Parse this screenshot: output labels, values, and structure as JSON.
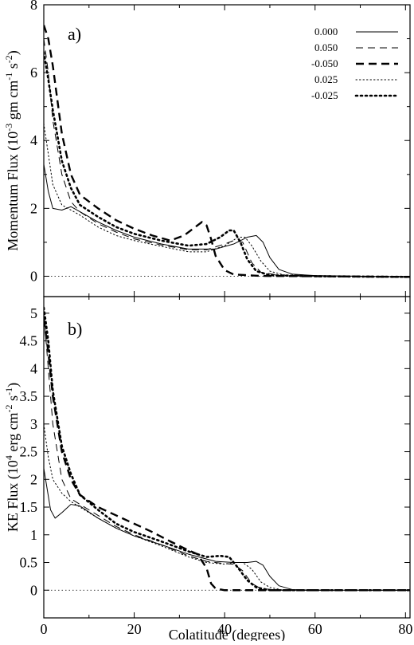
{
  "chart_data": [
    {
      "type": "line",
      "panel_label": "a)",
      "ylabel": "Momentum Flux (10",
      "ylabel_exp": "-3",
      "ylabel_units": " gm cm",
      "ylabel_units_exp1": "-1",
      "ylabel_units_mid": " s",
      "ylabel_units_exp2": "-2",
      "ylabel_close": ")",
      "xlim": [
        0,
        81
      ],
      "ylim": [
        -0.6,
        8
      ],
      "yticks": [
        0,
        2,
        4,
        6,
        8
      ],
      "xticks": [
        0,
        20,
        40,
        60,
        80
      ],
      "legend_position": "top-right",
      "zero_line": true,
      "series": [
        {
          "name": "0.000",
          "style": "solid-thin",
          "points": [
            [
              0,
              3.3
            ],
            [
              1,
              2.5
            ],
            [
              2,
              2.0
            ],
            [
              4,
              1.95
            ],
            [
              6,
              2.05
            ],
            [
              8,
              1.9
            ],
            [
              12,
              1.6
            ],
            [
              16,
              1.35
            ],
            [
              20,
              1.15
            ],
            [
              26,
              0.95
            ],
            [
              32,
              0.8
            ],
            [
              38,
              0.8
            ],
            [
              42,
              0.95
            ],
            [
              45,
              1.15
            ],
            [
              47,
              1.2
            ],
            [
              48.5,
              1.0
            ],
            [
              50,
              0.55
            ],
            [
              52,
              0.2
            ],
            [
              55,
              0.06
            ],
            [
              60,
              0.02
            ],
            [
              70,
              0.0
            ],
            [
              81,
              -0.02
            ]
          ]
        },
        {
          "name": "0.050",
          "style": "dash-thin",
          "points": [
            [
              0,
              7.0
            ],
            [
              1,
              6.0
            ],
            [
              2,
              4.6
            ],
            [
              4,
              3.0
            ],
            [
              6,
              2.2
            ],
            [
              8,
              1.9
            ],
            [
              12,
              1.55
            ],
            [
              16,
              1.3
            ],
            [
              20,
              1.1
            ],
            [
              26,
              0.92
            ],
            [
              32,
              0.78
            ],
            [
              36,
              0.78
            ],
            [
              40,
              0.95
            ],
            [
              42,
              1.05
            ],
            [
              44,
              1.0
            ],
            [
              46,
              0.4
            ],
            [
              48,
              0.12
            ],
            [
              52,
              0.03
            ],
            [
              60,
              0.01
            ],
            [
              70,
              0.0
            ],
            [
              81,
              -0.02
            ]
          ]
        },
        {
          "name": "-0.050",
          "style": "dash-thick",
          "points": [
            [
              0,
              7.4
            ],
            [
              1,
              7.0
            ],
            [
              2,
              6.2
            ],
            [
              4,
              4.2
            ],
            [
              6,
              3.0
            ],
            [
              8,
              2.4
            ],
            [
              12,
              2.0
            ],
            [
              16,
              1.65
            ],
            [
              20,
              1.4
            ],
            [
              24,
              1.2
            ],
            [
              28,
              1.05
            ],
            [
              31,
              1.2
            ],
            [
              33,
              1.4
            ],
            [
              35,
              1.6
            ],
            [
              36,
              1.5
            ],
            [
              37,
              1.1
            ],
            [
              38,
              0.6
            ],
            [
              40,
              0.18
            ],
            [
              42,
              0.05
            ],
            [
              48,
              0.01
            ],
            [
              60,
              0.0
            ],
            [
              81,
              -0.02
            ]
          ]
        },
        {
          "name": "0.025",
          "style": "dot-thin",
          "points": [
            [
              0,
              4.5
            ],
            [
              1,
              3.6
            ],
            [
              2,
              2.7
            ],
            [
              4,
              2.1
            ],
            [
              6,
              1.95
            ],
            [
              8,
              1.8
            ],
            [
              12,
              1.45
            ],
            [
              16,
              1.2
            ],
            [
              20,
              1.05
            ],
            [
              26,
              0.88
            ],
            [
              32,
              0.72
            ],
            [
              36,
              0.72
            ],
            [
              40,
              0.9
            ],
            [
              43,
              1.15
            ],
            [
              44.5,
              1.15
            ],
            [
              46,
              0.9
            ],
            [
              48,
              0.45
            ],
            [
              50,
              0.15
            ],
            [
              53,
              0.04
            ],
            [
              60,
              0.01
            ],
            [
              70,
              0.0
            ],
            [
              81,
              -0.02
            ]
          ]
        },
        {
          "name": "-0.025",
          "style": "dot-thick",
          "points": [
            [
              0,
              6.6
            ],
            [
              1,
              5.8
            ],
            [
              2,
              4.9
            ],
            [
              4,
              3.4
            ],
            [
              6,
              2.6
            ],
            [
              8,
              2.1
            ],
            [
              12,
              1.75
            ],
            [
              16,
              1.45
            ],
            [
              20,
              1.25
            ],
            [
              26,
              1.05
            ],
            [
              32,
              0.9
            ],
            [
              36,
              0.95
            ],
            [
              39,
              1.15
            ],
            [
              41,
              1.35
            ],
            [
              42,
              1.35
            ],
            [
              43.5,
              1.0
            ],
            [
              45,
              0.5
            ],
            [
              47,
              0.15
            ],
            [
              50,
              0.03
            ],
            [
              60,
              0.0
            ],
            [
              81,
              -0.02
            ]
          ]
        }
      ]
    },
    {
      "type": "line",
      "panel_label": "b)",
      "ylabel": "KE Flux (10",
      "ylabel_exp": "4",
      "ylabel_units": " erg cm",
      "ylabel_units_exp1": "-2",
      "ylabel_units_mid": " s",
      "ylabel_units_exp2": "-1",
      "ylabel_close": ")",
      "xlabel": "Colatitude (degrees)",
      "xlim": [
        0,
        81
      ],
      "ylim": [
        -0.5,
        5.3
      ],
      "yticks": [
        0,
        0.5,
        1,
        1.5,
        2,
        2.5,
        3,
        3.5,
        4,
        4.5,
        5
      ],
      "xticks": [
        0,
        20,
        40,
        60,
        80
      ],
      "zero_line": true,
      "series": [
        {
          "name": "0.000",
          "style": "solid-thin",
          "points": [
            [
              0,
              2.2
            ],
            [
              0.8,
              1.8
            ],
            [
              1.5,
              1.45
            ],
            [
              2.5,
              1.3
            ],
            [
              4,
              1.4
            ],
            [
              6,
              1.55
            ],
            [
              8,
              1.52
            ],
            [
              12,
              1.3
            ],
            [
              16,
              1.12
            ],
            [
              20,
              0.98
            ],
            [
              26,
              0.82
            ],
            [
              32,
              0.65
            ],
            [
              38,
              0.52
            ],
            [
              42,
              0.5
            ],
            [
              45,
              0.5
            ],
            [
              47,
              0.52
            ],
            [
              48.5,
              0.45
            ],
            [
              50,
              0.25
            ],
            [
              52,
              0.08
            ],
            [
              55,
              0.01
            ],
            [
              60,
              0.0
            ],
            [
              81,
              0.0
            ]
          ]
        },
        {
          "name": "0.050",
          "style": "dash-thin",
          "points": [
            [
              0,
              5.0
            ],
            [
              1,
              4.0
            ],
            [
              2,
              3.0
            ],
            [
              4,
              2.0
            ],
            [
              6,
              1.65
            ],
            [
              8,
              1.55
            ],
            [
              12,
              1.35
            ],
            [
              16,
              1.15
            ],
            [
              20,
              1.0
            ],
            [
              26,
              0.82
            ],
            [
              32,
              0.62
            ],
            [
              36,
              0.52
            ],
            [
              40,
              0.48
            ],
            [
              42,
              0.47
            ],
            [
              44,
              0.35
            ],
            [
              46,
              0.12
            ],
            [
              48,
              0.03
            ],
            [
              52,
              0.0
            ],
            [
              81,
              0.0
            ]
          ]
        },
        {
          "name": "-0.050",
          "style": "dash-thick",
          "points": [
            [
              0,
              4.9
            ],
            [
              1,
              4.3
            ],
            [
              2,
              3.5
            ],
            [
              4,
              2.5
            ],
            [
              6,
              2.0
            ],
            [
              8,
              1.72
            ],
            [
              12,
              1.5
            ],
            [
              16,
              1.35
            ],
            [
              20,
              1.2
            ],
            [
              24,
              1.05
            ],
            [
              28,
              0.88
            ],
            [
              32,
              0.72
            ],
            [
              34,
              0.65
            ],
            [
              36,
              0.4
            ],
            [
              37,
              0.12
            ],
            [
              38,
              0.03
            ],
            [
              40,
              0.0
            ],
            [
              81,
              0.0
            ]
          ]
        },
        {
          "name": "0.025",
          "style": "dot-thin",
          "points": [
            [
              0,
              3.0
            ],
            [
              1,
              2.4
            ],
            [
              2,
              2.0
            ],
            [
              4,
              1.75
            ],
            [
              6,
              1.6
            ],
            [
              8,
              1.5
            ],
            [
              12,
              1.3
            ],
            [
              16,
              1.12
            ],
            [
              20,
              0.98
            ],
            [
              26,
              0.8
            ],
            [
              32,
              0.6
            ],
            [
              36,
              0.5
            ],
            [
              40,
              0.47
            ],
            [
              42,
              0.5
            ],
            [
              44,
              0.5
            ],
            [
              46,
              0.38
            ],
            [
              48,
              0.15
            ],
            [
              50,
              0.05
            ],
            [
              53,
              0.0
            ],
            [
              81,
              0.0
            ]
          ]
        },
        {
          "name": "-0.025",
          "style": "dot-thick",
          "points": [
            [
              0,
              5.1
            ],
            [
              1,
              4.5
            ],
            [
              2,
              3.6
            ],
            [
              4,
              2.6
            ],
            [
              6,
              2.1
            ],
            [
              8,
              1.72
            ],
            [
              12,
              1.45
            ],
            [
              16,
              1.2
            ],
            [
              20,
              1.05
            ],
            [
              26,
              0.88
            ],
            [
              32,
              0.7
            ],
            [
              36,
              0.6
            ],
            [
              39,
              0.62
            ],
            [
              41,
              0.6
            ],
            [
              43,
              0.4
            ],
            [
              45,
              0.18
            ],
            [
              47,
              0.05
            ],
            [
              50,
              0.0
            ],
            [
              81,
              0.0
            ]
          ]
        }
      ]
    }
  ]
}
